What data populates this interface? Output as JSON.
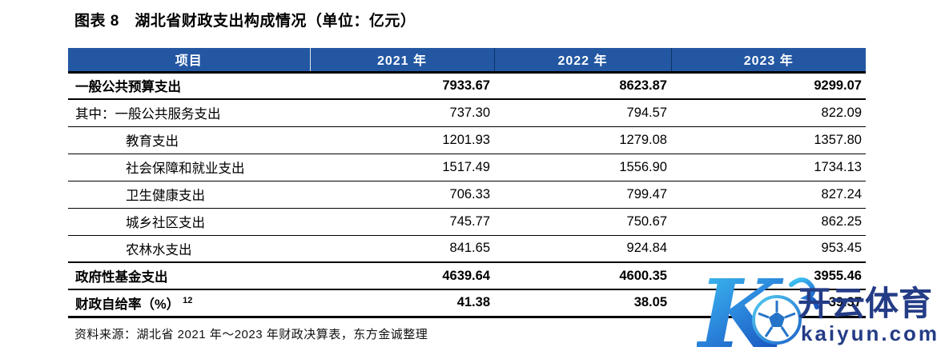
{
  "title": "图表 8　湖北省财政支出构成情况（单位：亿元）",
  "table": {
    "headers": [
      "项目",
      "2021 年",
      "2022 年",
      "2023 年"
    ],
    "rows": [
      {
        "label": "一般公共预算支出",
        "indent": 0,
        "bold": true,
        "border": "b2",
        "values": [
          "7933.67",
          "8623.87",
          "9299.07"
        ]
      },
      {
        "label": "其中：一般公共服务支出",
        "indent": 0,
        "bold": false,
        "border": "b1",
        "values": [
          "737.30",
          "794.57",
          "822.09"
        ]
      },
      {
        "label": "教育支出",
        "indent": 1,
        "bold": false,
        "border": "b1",
        "values": [
          "1201.93",
          "1279.08",
          "1357.80"
        ]
      },
      {
        "label": "社会保障和就业支出",
        "indent": 1,
        "bold": false,
        "border": "b1",
        "values": [
          "1517.49",
          "1556.90",
          "1734.13"
        ]
      },
      {
        "label": "卫生健康支出",
        "indent": 1,
        "bold": false,
        "border": "b1",
        "values": [
          "706.33",
          "799.47",
          "827.24"
        ]
      },
      {
        "label": "城乡社区支出",
        "indent": 1,
        "bold": false,
        "border": "b1",
        "values": [
          "745.77",
          "750.67",
          "862.25"
        ]
      },
      {
        "label": "农林水支出",
        "indent": 1,
        "bold": false,
        "border": "b2",
        "values": [
          "841.65",
          "924.84",
          "953.45"
        ]
      },
      {
        "label": "政府性基金支出",
        "indent": 0,
        "bold": true,
        "border": "b2",
        "values": [
          "4639.64",
          "4600.35",
          "3955.46"
        ]
      },
      {
        "label": "财政自给率（%）",
        "sup": "12",
        "indent": 0,
        "bold": true,
        "border": "b3",
        "values": [
          "41.38",
          "38.05",
          "39.37"
        ]
      }
    ]
  },
  "source": "资料来源：湖北省 2021 年～2023 年财政决算表，东方金诚整理",
  "watermark": {
    "monogram": "K",
    "brand": "开云体育",
    "domain": "kaiyun.com"
  },
  "colors": {
    "header_bg": "#2357A2",
    "header_text": "#FFFFFF",
    "row_line": "#000000",
    "watermark_navy": "#243C86",
    "watermark_gradient_start": "#3FC9F2",
    "watermark_gradient_mid": "#2E8FE0",
    "watermark_gradient_end": "#1956C0"
  }
}
